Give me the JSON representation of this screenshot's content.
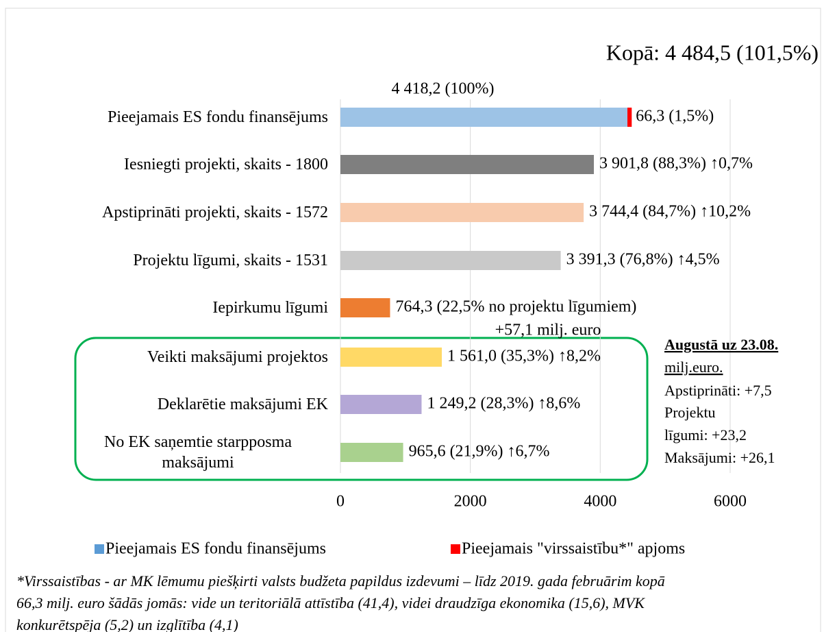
{
  "chart_data": {
    "type": "bar",
    "orientation": "horizontal",
    "categories": [
      "Pieejamais ES fondu finansējums",
      "Iesniegti projekti, skaits - 1800",
      "Apstiprināti projekti, skaits - 1572",
      "Projektu līgumi, skaits -  1531",
      "Iepirkumu līgumi",
      "Veikti maksājumi projektos",
      "Deklarētie maksājumi EK",
      "No EK saņemtie starpposma maksājumi"
    ],
    "series": [
      {
        "name": "Pieejamais ES fondu finansējums",
        "color": "#5b9bd5",
        "colors": [
          "#9dc3e6",
          "#7f7f7f",
          "#f8cbad",
          "#c9c9c9",
          "#ed7d31",
          "#ffd966",
          "#b4a7d6",
          "#a9d18e"
        ],
        "values": [
          4418.2,
          3901.8,
          3744.4,
          3391.3,
          764.3,
          1561.0,
          1249.2,
          965.6
        ],
        "value_labels": [
          "4 418,2 (100%)",
          "3 901,8 (88,3%) ↑0,7%",
          "3 744,4 (84,7%) ↑10,2%",
          "3 391,3 (76,8%) ↑4,5%",
          "764,3 (22,5% no projektu līgumiem)",
          "1 561,0 (35,3%) ↑8,2%",
          "1 249,2 (28,3%) ↑8,6%",
          "965,6 (21,9%) ↑6,7%"
        ]
      },
      {
        "name": "Pieejamais \"virssaistību*\" apjoms",
        "color": "#ff0000",
        "values": [
          66.3,
          null,
          null,
          null,
          null,
          null,
          null,
          null
        ],
        "value_labels": [
          "66,3 (1,5%)",
          null,
          null,
          null,
          null,
          null,
          null,
          null
        ]
      }
    ],
    "xlim": [
      0,
      6000
    ],
    "xticks": [
      0,
      2000,
      4000,
      6000
    ],
    "grid": true,
    "legend": "bottom",
    "annotations": {
      "total": "Kopā: 4 484,5 (101,5%)",
      "procurement_note": "+57,1 milj. euro",
      "side_note": [
        "Augustā uz 23.08.",
        "milj.euro.",
        "Apstiprināti: +7,5",
        "Projektu",
        "līgumi: +23,2",
        "Maksājumi: +26,1"
      ],
      "footnote": [
        "*Virssaistības - ar MK lēmumu piešķirti valsts budžeta papildus izdevumi – līdz 2019. gada februārim kopā",
        "66,3 milj. euro šādās jomās: vide un teritoriālā attīstība (41,4), videi draudzīga ekonomika (15,6), MVK",
        "konkurētspēja (5,2) un izglītība (4,1)"
      ]
    }
  }
}
